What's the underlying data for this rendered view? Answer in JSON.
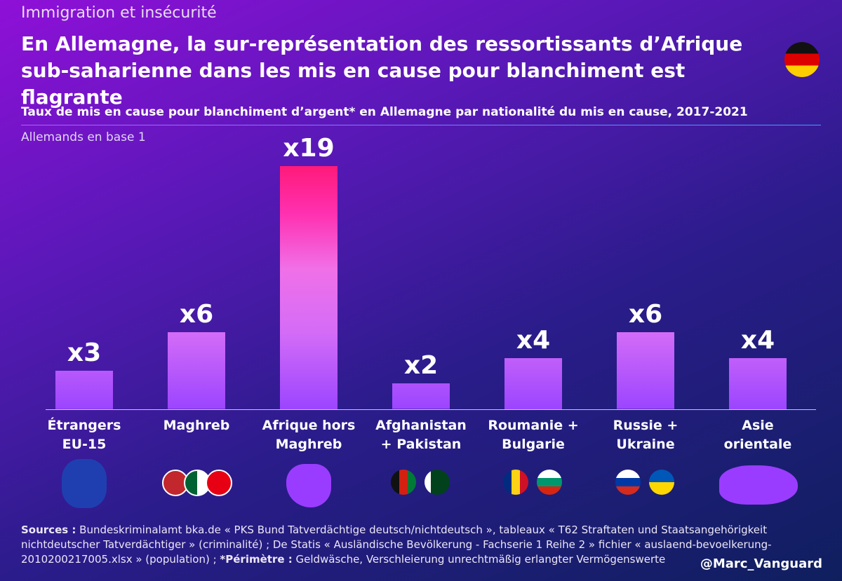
{
  "kicker": "Immigration et insécurité",
  "chart_data": {
    "type": "bar",
    "title": "En Allemagne, la sur-représentation des ressortissants d’Afrique sub-saharienne dans les mis en cause pour blanchiment est flagrante",
    "subtitle": "Taux de mis en cause pour blanchiment d’argent* en Allemagne par nationalité du mis en cause, 2017-2021",
    "note": "Allemands en base 1",
    "categories": [
      "Étrangers\nEU-15",
      "Maghreb",
      "Afrique hors\nMaghreb",
      "Afghanistan\n+ Pakistan",
      "Roumanie +\nBulgarie",
      "Russie +\nUkraine",
      "Asie\norientale"
    ],
    "values": [
      3,
      6,
      19,
      2,
      4,
      6,
      4
    ],
    "value_labels": [
      "x3",
      "x6",
      "x19",
      "x2",
      "x4",
      "x6",
      "x4"
    ]
  },
  "sources": {
    "label": "Sources :",
    "text": " Bundeskriminalamt bka.de « PKS Bund Tatverdächtige deutsch/nichtdeutsch », tableaux « T62 Straftaten und Staatsangehörigkeit nichtdeutscher Tatverdächtiger » (criminalité) ; De Statis « Ausländische Bevölkerung - Fachserie 1 Reihe 2 » fichier « auslaend-bevoelkerung-2010200217005.xlsx » (population) ; ",
    "scope_label": "*Périmètre :",
    "scope_text": " Geldwäsche, Verschleierung unrechtmäßig erlangter Vermögenswerte"
  },
  "handle": "@Marc_Vanguard"
}
